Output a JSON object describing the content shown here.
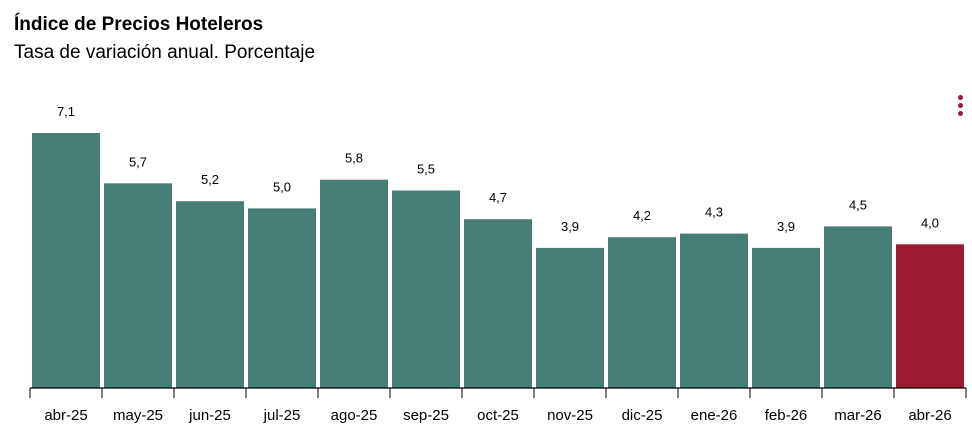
{
  "title": "Índice de Precios Hoteleros",
  "subtitle": "Tasa de variación anual. Porcentaje",
  "menu_icon": "more-vertical-icon",
  "colors": {
    "bar": "#467e76",
    "highlight": "#9b1b34",
    "axis": "#000000"
  },
  "chart_data": {
    "type": "bar",
    "title": "Índice de Precios Hoteleros",
    "subtitle": "Tasa de variación anual. Porcentaje",
    "categories": [
      "abr-25",
      "may-25",
      "jun-25",
      "jul-25",
      "ago-25",
      "sep-25",
      "oct-25",
      "nov-25",
      "dic-25",
      "ene-26",
      "feb-26",
      "mar-26",
      "abr-26"
    ],
    "values": [
      7.1,
      5.7,
      5.2,
      5.0,
      5.8,
      5.5,
      4.7,
      3.9,
      4.2,
      4.3,
      3.9,
      4.5,
      4.0
    ],
    "value_labels": [
      "7,1",
      "5,7",
      "5,2",
      "5,0",
      "5,8",
      "5,5",
      "4,7",
      "3,9",
      "4,2",
      "4,3",
      "3,9",
      "4,5",
      "4,0"
    ],
    "highlight_index": 12,
    "ylim": [
      0,
      7.1
    ],
    "xlabel": "",
    "ylabel": "",
    "grid": false,
    "legend": "none"
  }
}
